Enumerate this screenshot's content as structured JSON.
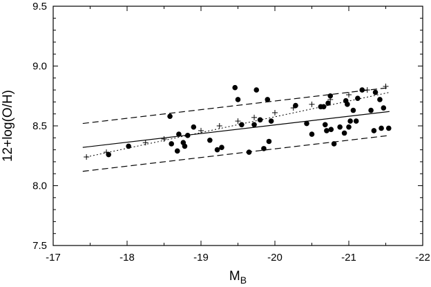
{
  "chart_data": {
    "type": "scatter",
    "xlabel": "M",
    "xlabel_sub": "B",
    "ylabel": "12+log(O/H)",
    "xlim": [
      -17,
      -22
    ],
    "ylim": [
      7.5,
      9.5
    ],
    "x_ticks": [
      -17,
      -18,
      -19,
      -20,
      -21,
      -22
    ],
    "x_tick_labels": [
      "-17",
      "-18",
      "-19",
      "-20",
      "-21",
      "-22"
    ],
    "y_ticks": [
      7.5,
      8.0,
      8.5,
      9.0,
      9.5
    ],
    "y_tick_labels": [
      "7.5",
      "8.0",
      "8.5",
      "9.0",
      "9.5"
    ],
    "grid": false,
    "series": [
      {
        "marker": "filled-circle",
        "points": [
          [
            -17.75,
            8.26
          ],
          [
            -18.02,
            8.33
          ],
          [
            -18.58,
            8.58
          ],
          [
            -18.6,
            8.35
          ],
          [
            -18.68,
            8.29
          ],
          [
            -18.7,
            8.43
          ],
          [
            -18.76,
            8.36
          ],
          [
            -18.78,
            8.33
          ],
          [
            -18.82,
            8.42
          ],
          [
            -18.9,
            8.49
          ],
          [
            -19.12,
            8.38
          ],
          [
            -19.22,
            8.3
          ],
          [
            -19.28,
            8.32
          ],
          [
            -19.46,
            8.82
          ],
          [
            -19.5,
            8.72
          ],
          [
            -19.55,
            8.51
          ],
          [
            -19.65,
            8.28
          ],
          [
            -19.72,
            8.51
          ],
          [
            -19.75,
            8.8
          ],
          [
            -19.8,
            8.55
          ],
          [
            -19.85,
            8.31
          ],
          [
            -19.9,
            8.72
          ],
          [
            -19.92,
            8.37
          ],
          [
            -19.95,
            8.54
          ],
          [
            -20.28,
            8.67
          ],
          [
            -20.43,
            8.52
          ],
          [
            -20.5,
            8.43
          ],
          [
            -20.62,
            8.66
          ],
          [
            -20.66,
            8.66
          ],
          [
            -20.68,
            8.51
          ],
          [
            -20.7,
            8.46
          ],
          [
            -20.72,
            8.69
          ],
          [
            -20.75,
            8.75
          ],
          [
            -20.76,
            8.47
          ],
          [
            -20.8,
            8.35
          ],
          [
            -20.88,
            8.49
          ],
          [
            -20.94,
            8.44
          ],
          [
            -20.96,
            8.71
          ],
          [
            -20.98,
            8.68
          ],
          [
            -21.0,
            8.49
          ],
          [
            -21.02,
            8.54
          ],
          [
            -21.06,
            8.63
          ],
          [
            -21.1,
            8.54
          ],
          [
            -21.12,
            8.73
          ],
          [
            -21.18,
            8.8
          ],
          [
            -21.3,
            8.63
          ],
          [
            -21.34,
            8.46
          ],
          [
            -21.36,
            8.78
          ],
          [
            -21.42,
            8.72
          ],
          [
            -21.44,
            8.48
          ],
          [
            -21.47,
            8.65
          ],
          [
            -21.54,
            8.48
          ]
        ]
      },
      {
        "marker": "plus",
        "points": [
          [
            -17.45,
            8.24
          ],
          [
            -17.72,
            8.28
          ],
          [
            -18.25,
            8.36
          ],
          [
            -18.5,
            8.39
          ],
          [
            -19.0,
            8.46
          ],
          [
            -19.25,
            8.5
          ],
          [
            -19.5,
            8.54
          ],
          [
            -19.72,
            8.57
          ],
          [
            -20.0,
            8.61
          ],
          [
            -20.25,
            8.65
          ],
          [
            -20.5,
            8.68
          ],
          [
            -20.75,
            8.72
          ],
          [
            -21.0,
            8.76
          ],
          [
            -21.25,
            8.8
          ],
          [
            -21.5,
            8.83
          ]
        ]
      }
    ],
    "lines": [
      {
        "style": "solid",
        "x": [
          -17.4,
          -21.55
        ],
        "y": [
          8.32,
          8.62
        ]
      },
      {
        "style": "dashed",
        "x": [
          -17.4,
          -21.55
        ],
        "y": [
          8.52,
          8.82
        ]
      },
      {
        "style": "dashed",
        "x": [
          -17.4,
          -21.55
        ],
        "y": [
          8.12,
          8.42
        ]
      },
      {
        "style": "dotted",
        "x": [
          -17.45,
          -21.55
        ],
        "y": [
          8.24,
          8.78
        ]
      }
    ]
  }
}
